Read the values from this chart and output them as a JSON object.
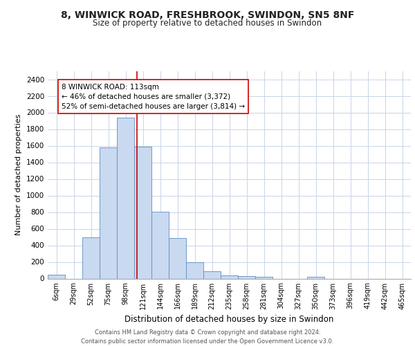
{
  "title_line1": "8, WINWICK ROAD, FRESHBROOK, SWINDON, SN5 8NF",
  "title_line2": "Size of property relative to detached houses in Swindon",
  "xlabel": "Distribution of detached houses by size in Swindon",
  "ylabel": "Number of detached properties",
  "bar_labels": [
    "6sqm",
    "29sqm",
    "52sqm",
    "75sqm",
    "98sqm",
    "121sqm",
    "144sqm",
    "166sqm",
    "189sqm",
    "212sqm",
    "235sqm",
    "258sqm",
    "281sqm",
    "304sqm",
    "327sqm",
    "350sqm",
    "373sqm",
    "396sqm",
    "419sqm",
    "442sqm",
    "465sqm"
  ],
  "bar_values": [
    50,
    0,
    500,
    1580,
    1940,
    1585,
    805,
    490,
    200,
    90,
    38,
    30,
    20,
    0,
    0,
    20,
    0,
    0,
    0,
    0,
    0
  ],
  "bar_color": "#c9d9f0",
  "bar_edge_color": "#5b8ec4",
  "vline_color": "#cc0000",
  "annotation_text": "8 WINWICK ROAD: 113sqm\n← 46% of detached houses are smaller (3,372)\n52% of semi-detached houses are larger (3,814) →",
  "annotation_box_color": "#ffffff",
  "annotation_box_edge": "#cc0000",
  "ylim": [
    0,
    2500
  ],
  "yticks": [
    0,
    200,
    400,
    600,
    800,
    1000,
    1200,
    1400,
    1600,
    1800,
    2000,
    2200,
    2400
  ],
  "footer_line1": "Contains HM Land Registry data © Crown copyright and database right 2024.",
  "footer_line2": "Contains public sector information licensed under the Open Government Licence v3.0.",
  "bg_color": "#ffffff",
  "grid_color": "#c8d4e8"
}
